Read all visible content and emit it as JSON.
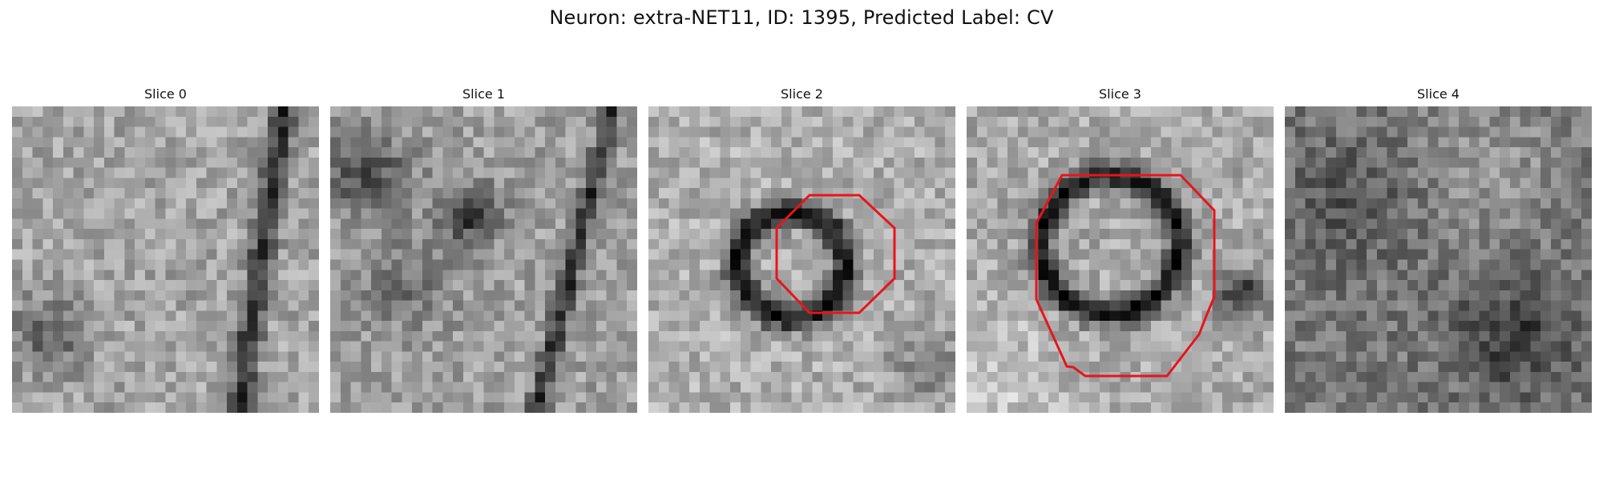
{
  "figure": {
    "title": "Neuron: extra-NET11, ID: 1395, Predicted Label: CV"
  },
  "colors": {
    "contour": "#e8141b",
    "colormap": "grayscale"
  },
  "panels": [
    {
      "title": "Slice 0",
      "has_contour": false
    },
    {
      "title": "Slice 1",
      "has_contour": false
    },
    {
      "title": "Slice 2",
      "has_contour": true
    },
    {
      "title": "Slice 3",
      "has_contour": true
    },
    {
      "title": "Slice 4",
      "has_contour": false
    }
  ]
}
